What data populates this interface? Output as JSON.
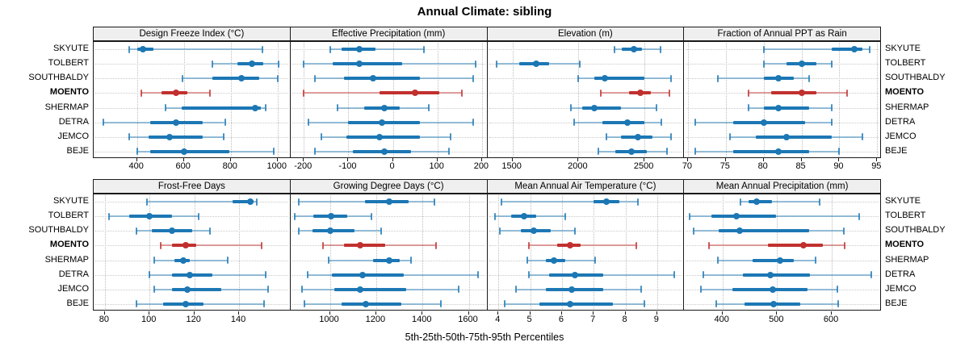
{
  "chart_data": {
    "type": "dotplot",
    "variant": "trellis percentile-interval plot (whisker 5th-95th, thick bar 25th-75th, dot at median)",
    "title": "Annual Climate: sibling",
    "xlabel": "5th-25th-50th-75th-95th Percentiles",
    "legend_position": "none",
    "grid": "dotted horizontal and vertical gridlines",
    "layout": {
      "rows": 2,
      "cols": 4,
      "site_labels": "both left and right sides"
    },
    "sites": [
      "SKYUTE",
      "TOLBERT",
      "SOUTHBALDY",
      "MOENTO",
      "SHERMAP",
      "DETRA",
      "JEMCO",
      "BEJE"
    ],
    "bold_site": "MOENTO",
    "highlight_site": "MOENTO",
    "colors": {
      "series": "#1C77B4",
      "highlight": "#C1302E",
      "strip_bg": "#EFEFEF",
      "grid": "#C9C9C9",
      "border": "#1A1A1A"
    },
    "percentile_labels": [
      "p5",
      "p25",
      "p50",
      "p75",
      "p95"
    ],
    "panels": [
      {
        "title": "Design Freeze Index (°C)",
        "row": 0,
        "col": 0,
        "xlim": [
          215,
          1055
        ],
        "ticks": [
          400,
          600,
          800,
          1000
        ],
        "values": [
          [
            365,
            400,
            425,
            470,
            935
          ],
          [
            720,
            830,
            890,
            940,
            1005
          ],
          [
            595,
            720,
            845,
            920,
            1000
          ],
          [
            420,
            505,
            565,
            615,
            710
          ],
          [
            520,
            590,
            905,
            930,
            950
          ],
          [
            255,
            455,
            565,
            680,
            775
          ],
          [
            365,
            450,
            540,
            680,
            770
          ],
          [
            400,
            455,
            600,
            795,
            985
          ]
        ]
      },
      {
        "title": "Effective Precipitation (mm)",
        "row": 0,
        "col": 1,
        "xlim": [
          -230,
          212
        ],
        "ticks": [
          -200,
          -100,
          0,
          100,
          200
        ],
        "values": [
          [
            -140,
            -115,
            -75,
            -40,
            70
          ],
          [
            -200,
            -135,
            -75,
            20,
            185
          ],
          [
            -175,
            -110,
            -45,
            60,
            180
          ],
          [
            -200,
            -30,
            50,
            105,
            155
          ],
          [
            -125,
            -65,
            -20,
            15,
            80
          ],
          [
            -190,
            -100,
            -25,
            60,
            180
          ],
          [
            -160,
            -105,
            -30,
            60,
            130
          ],
          [
            -175,
            -90,
            -20,
            40,
            125
          ]
        ]
      },
      {
        "title": "Elevation (m)",
        "row": 0,
        "col": 2,
        "xlim": [
          1310,
          2800
        ],
        "ticks": [
          1500,
          2000,
          2500
        ],
        "values": [
          [
            2270,
            2330,
            2420,
            2480,
            2620
          ],
          [
            1380,
            1550,
            1680,
            1780,
            2010
          ],
          [
            2000,
            2120,
            2200,
            2500,
            2700
          ],
          [
            2170,
            2380,
            2470,
            2550,
            2690
          ],
          [
            1940,
            2030,
            2120,
            2320,
            2590
          ],
          [
            1970,
            2180,
            2370,
            2500,
            2630
          ],
          [
            2210,
            2320,
            2450,
            2560,
            2700
          ],
          [
            2150,
            2280,
            2400,
            2520,
            2670
          ]
        ]
      },
      {
        "title": "Fraction of Annual PPT as Rain",
        "row": 0,
        "col": 3,
        "xlim": [
          69.5,
          95.5
        ],
        "ticks": [
          70,
          75,
          80,
          85,
          90,
          95
        ],
        "values": [
          [
            80,
            89,
            92,
            93,
            94
          ],
          [
            80,
            83,
            85,
            87,
            89
          ],
          [
            74,
            80,
            82,
            84,
            86
          ],
          [
            78,
            81,
            85,
            87,
            91
          ],
          [
            78,
            80,
            82,
            86,
            89
          ],
          [
            71,
            76,
            80,
            85.5,
            89
          ],
          [
            75.5,
            79,
            83,
            89,
            93
          ],
          [
            71,
            76,
            82,
            86,
            90
          ]
        ]
      },
      {
        "title": "Frost-Free Days",
        "row": 1,
        "col": 0,
        "xlim": [
          75,
          163
        ],
        "ticks": [
          80,
          100,
          120,
          140
        ],
        "values": [
          [
            99,
            137,
            145,
            146.5,
            148
          ],
          [
            82,
            91,
            100,
            110,
            122
          ],
          [
            94,
            101,
            110,
            119,
            127
          ],
          [
            105,
            110,
            116,
            121,
            150
          ],
          [
            102,
            111,
            115,
            118,
            135
          ],
          [
            100,
            110,
            118,
            128,
            152
          ],
          [
            102,
            110,
            117,
            132,
            153
          ],
          [
            94,
            106,
            116,
            124,
            151
          ]
        ]
      },
      {
        "title": "Growing Degree Days (°C)",
        "row": 1,
        "col": 1,
        "xlim": [
          830,
          1680
        ],
        "ticks": [
          1000,
          1200,
          1400,
          1600
        ],
        "values": [
          [
            865,
            1150,
            1255,
            1340,
            1450
          ],
          [
            850,
            930,
            1005,
            1075,
            1180
          ],
          [
            865,
            925,
            1000,
            1105,
            1220
          ],
          [
            970,
            1060,
            1130,
            1240,
            1460
          ],
          [
            995,
            1185,
            1255,
            1300,
            1350
          ],
          [
            905,
            1010,
            1140,
            1320,
            1640
          ],
          [
            880,
            1020,
            1130,
            1330,
            1555
          ],
          [
            890,
            1050,
            1155,
            1310,
            1480
          ]
        ]
      },
      {
        "title": "Mean Annual Air Temperature (°C)",
        "row": 1,
        "col": 2,
        "xlim": [
          3.65,
          9.85
        ],
        "ticks": [
          4,
          5,
          6,
          7,
          8,
          9
        ],
        "values": [
          [
            4.1,
            7.0,
            7.4,
            7.8,
            8.4
          ],
          [
            3.9,
            4.4,
            4.8,
            5.2,
            6.1
          ],
          [
            4.05,
            4.7,
            5.1,
            5.65,
            6.4
          ],
          [
            4.95,
            5.85,
            6.25,
            6.6,
            8.35
          ],
          [
            4.9,
            5.5,
            5.75,
            6.1,
            7.05
          ],
          [
            4.95,
            5.6,
            6.4,
            7.3,
            9.55
          ],
          [
            4.55,
            5.5,
            6.3,
            7.3,
            8.5
          ],
          [
            4.2,
            5.3,
            6.25,
            7.6,
            8.6
          ]
        ]
      },
      {
        "title": "Mean Annual Precipitation (mm)",
        "row": 1,
        "col": 3,
        "xlim": [
          330,
          690
        ],
        "ticks": [
          400,
          500,
          600
        ],
        "values": [
          [
            433,
            448,
            463,
            490,
            578
          ],
          [
            340,
            380,
            425,
            498,
            650
          ],
          [
            348,
            393,
            432,
            558,
            622
          ],
          [
            375,
            483,
            548,
            583,
            623
          ],
          [
            392,
            455,
            505,
            530,
            570
          ],
          [
            365,
            437,
            488,
            560,
            672
          ],
          [
            360,
            418,
            492,
            555,
            610
          ],
          [
            388,
            440,
            493,
            543,
            612
          ]
        ]
      }
    ]
  }
}
